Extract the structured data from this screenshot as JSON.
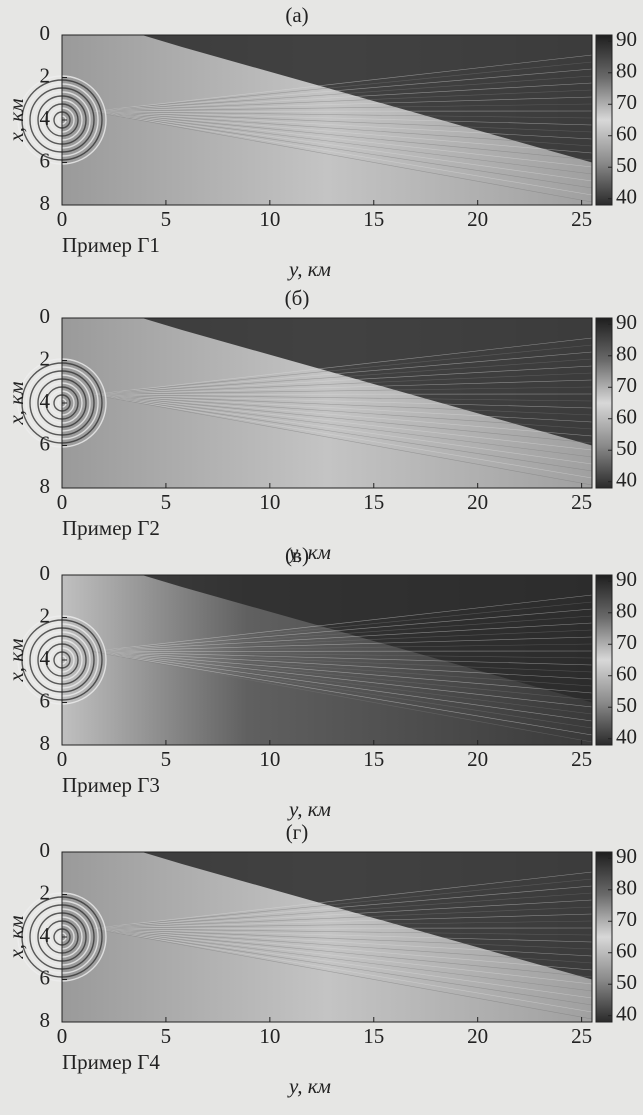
{
  "chart_data": [
    {
      "type": "heatmap",
      "panel_label": "(а)",
      "caption": "Пример Г1",
      "x_label": "y, км",
      "y_label": "x, км",
      "xlim": [
        0,
        25.5
      ],
      "ylim": [
        8,
        0
      ],
      "xticks": [
        0,
        5,
        10,
        15,
        20,
        25
      ],
      "yticks": [
        0,
        2,
        4,
        6,
        8
      ],
      "colorbar": {
        "lim": [
          38,
          92
        ],
        "ticks": [
          40,
          50,
          60,
          70,
          80,
          90
        ]
      }
    },
    {
      "type": "heatmap",
      "panel_label": "(б)",
      "caption": "Пример Г2",
      "x_label": "y, км",
      "y_label": "x, км",
      "xlim": [
        0,
        25.5
      ],
      "ylim": [
        8,
        0
      ],
      "xticks": [
        0,
        5,
        10,
        15,
        20,
        25
      ],
      "yticks": [
        0,
        2,
        4,
        6,
        8
      ],
      "colorbar": {
        "lim": [
          38,
          92
        ],
        "ticks": [
          40,
          50,
          60,
          70,
          80,
          90
        ]
      }
    },
    {
      "type": "heatmap",
      "panel_label": "(в)",
      "caption": "Пример Г3",
      "x_label": "y, км",
      "y_label": "x, км",
      "xlim": [
        0,
        25.5
      ],
      "ylim": [
        8,
        0
      ],
      "xticks": [
        0,
        5,
        10,
        15,
        20,
        25
      ],
      "yticks": [
        0,
        2,
        4,
        6,
        8
      ],
      "colorbar": {
        "lim": [
          38,
          92
        ],
        "ticks": [
          40,
          50,
          60,
          70,
          80,
          90
        ]
      }
    },
    {
      "type": "heatmap",
      "panel_label": "(г)",
      "caption": "Пример Г4",
      "x_label": "y, км",
      "y_label": "x, км",
      "xlim": [
        0,
        25.5
      ],
      "ylim": [
        8,
        0
      ],
      "xticks": [
        0,
        5,
        10,
        15,
        20,
        25
      ],
      "yticks": [
        0,
        2,
        4,
        6,
        8
      ],
      "colorbar": {
        "lim": [
          38,
          92
        ],
        "ticks": [
          40,
          50,
          60,
          70,
          80,
          90
        ]
      }
    }
  ]
}
